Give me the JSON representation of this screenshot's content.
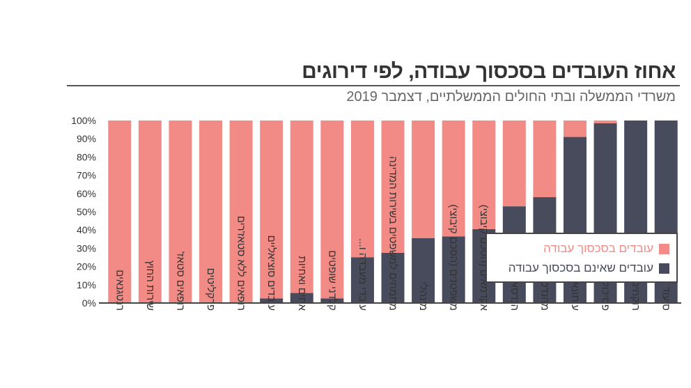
{
  "title": "אחוז העובדים בסכסוך עבודה, לפי דירוגים",
  "subtitle": "משרדי הממשלה ובתי החולים הממשלתיים, דצמבר 2019",
  "colors": {
    "in_dispute": "#f28b86",
    "not_in_dispute": "#474b5c",
    "axis": "#444444"
  },
  "chart_data": {
    "type": "bar",
    "stacked": true,
    "categories": [
      "רנטגנאים",
      "שירות החוץ",
      "רופאים סטאז'",
      "פרקליטים",
      "רופאים ללא סטאז'רים",
      "עובדים סוציאליים",
      "אחים ואחיות",
      "קלדני שופטים",
      "עובדי מעבדה ו...",
      "מתמחים למשפטים בשירות המדינה",
      "מינהלי",
      "משפטנים (הסכם קיבוצי)",
      "אקדמאים (הסכם קיבוצי)",
      "הנדסאים וטכנאים",
      "מהנדסים",
      "עיתונאים",
      "פסיכולוגים",
      "רוקחים",
      "סיעוד צבא..."
    ],
    "series": [
      {
        "name": "עובדים בסכסוך עבודה",
        "values": [
          100,
          100,
          100,
          100,
          100,
          97.5,
          94.5,
          97.5,
          75,
          72.5,
          64.5,
          63.5,
          59.5,
          47,
          42,
          9,
          1.5,
          0,
          0
        ]
      },
      {
        "name": "עובדים שאינם בסכסוך עבודה",
        "values": [
          0,
          0,
          0,
          0,
          0,
          2.5,
          5.5,
          2.5,
          25,
          27.5,
          35.5,
          36.5,
          40.5,
          53,
          58,
          91,
          98.5,
          100,
          100
        ]
      }
    ],
    "y_ticks": [
      "0%",
      "10%",
      "20%",
      "30%",
      "40%",
      "50%",
      "60%",
      "70%",
      "80%",
      "90%",
      "100%"
    ],
    "ylim": [
      0,
      100
    ],
    "legend_position": "right"
  },
  "legend": {
    "in_dispute": "עובדים בסכסוך עבודה",
    "not_in_dispute": "עובדים שאינם בסכסוך עבודה"
  }
}
